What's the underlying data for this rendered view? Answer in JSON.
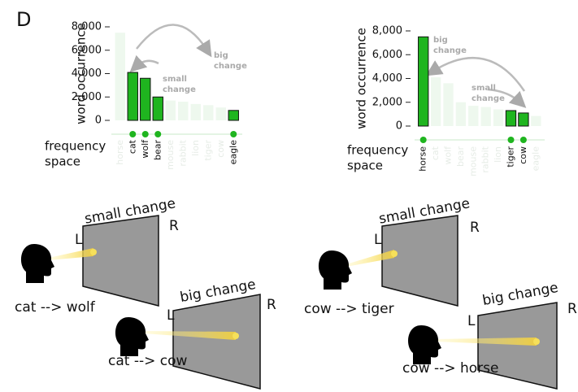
{
  "panel_label": "D",
  "chart_data": [
    {
      "type": "bar",
      "y_label": "word occurrence",
      "x_label": [
        "frequency",
        "space"
      ],
      "categories": [
        "horse",
        "cat",
        "wolf",
        "bear",
        "mouse",
        "rabbit",
        "lion",
        "tiger",
        "cow",
        "eagle"
      ],
      "values": [
        7500,
        4100,
        3600,
        2000,
        1700,
        1600,
        1400,
        1300,
        1100,
        850
      ],
      "highlighted": [
        false,
        true,
        true,
        true,
        false,
        false,
        false,
        false,
        false,
        true
      ],
      "highlight_color": "#1fb51f",
      "faded_color": "#eef8ee",
      "ylim": [
        0,
        8000
      ],
      "yticks": [
        0,
        {
          "value": 2000,
          "label": "2,000"
        },
        {
          "value": 4000,
          "label": "4,000"
        },
        {
          "value": 6000,
          "label": "6,000"
        },
        {
          "value": 8000,
          "label": "8,000"
        }
      ],
      "annotations": [
        {
          "lines": [
            "small",
            "change"
          ]
        },
        {
          "lines": [
            "big",
            "change"
          ]
        }
      ]
    },
    {
      "type": "bar",
      "y_label": "word occurrence",
      "x_label": [
        "frequency",
        "space"
      ],
      "categories": [
        "horse",
        "cat",
        "wolf",
        "bear",
        "mouse",
        "rabbit",
        "lion",
        "tiger",
        "cow",
        "eagle"
      ],
      "values": [
        7500,
        4100,
        3600,
        2000,
        1700,
        1600,
        1400,
        1300,
        1100,
        850
      ],
      "highlighted": [
        true,
        false,
        false,
        false,
        false,
        false,
        false,
        true,
        true,
        false
      ],
      "highlight_color": "#1fb51f",
      "faded_color": "#eef8ee",
      "ylim": [
        0,
        8000
      ],
      "yticks": [
        0,
        {
          "value": 2000,
          "label": "2,000"
        },
        {
          "value": 4000,
          "label": "4,000"
        },
        {
          "value": 6000,
          "label": "6,000"
        },
        {
          "value": 8000,
          "label": "8,000"
        }
      ],
      "annotations": [
        {
          "lines": [
            "big",
            "change"
          ]
        },
        {
          "lines": [
            "small",
            "change"
          ]
        }
      ]
    }
  ],
  "diagrams": [
    {
      "change": "small change",
      "left": "L",
      "right": "R",
      "caption": "cat --> wolf"
    },
    {
      "change": "big change",
      "left": "L",
      "right": "R",
      "caption": "cat --> cow"
    },
    {
      "change": "small change",
      "left": "L",
      "right": "R",
      "caption": "cow --> tiger"
    },
    {
      "change": "big change",
      "left": "L",
      "right": "R",
      "caption": "cow --> horse"
    }
  ]
}
